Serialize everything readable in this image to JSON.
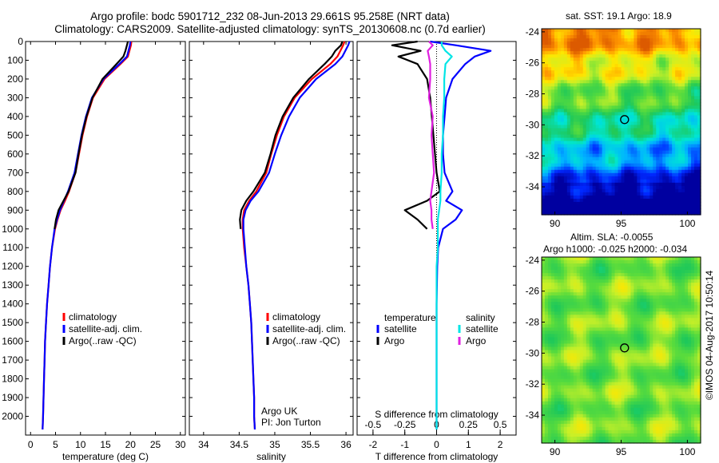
{
  "title_line1": "Argo profile: bodc 5901712_232 08-Jun-2013 29.661S 95.258E (NRT data)",
  "title_line2": "Climatology: CARS2009. Satellite-adjusted climatology: synTS_20130608.nc (0.7d earlier)",
  "sst_title": "sat. SST: 19.1 Argo: 18.9",
  "sla_title1": "Altim. SLA: -0.0055",
  "sla_title2": "Argo h1000: -0.025 h2000: -0.034",
  "credit": "©IMOS 04-Aug-2017 10:50:14",
  "argo_note1": "Argo UK",
  "argo_note2": "PI: Jon Turton",
  "colors": {
    "climatology": "#ff0000",
    "satellite": "#0000ff",
    "argo": "#000000",
    "sal_satellite": "#00e5e5",
    "sal_argo": "#e020e0"
  },
  "legend_profiles": [
    "climatology",
    "satellite-adj. clim.",
    "Argo(..raw -QC)"
  ],
  "legend_diff": {
    "temperature_header": "temperature",
    "salinity_header": "salinity",
    "items": [
      "satellite",
      "Argo",
      "satellite",
      "Argo"
    ]
  },
  "chart_data": [
    {
      "type": "line",
      "xlabel": "temperature (deg C)",
      "ylim": [
        2100,
        0
      ],
      "xlim": [
        -1,
        31
      ],
      "xticks": [
        "0",
        "5",
        "10",
        "15",
        "20",
        "25",
        "30"
      ],
      "yticks": [
        "0",
        "100",
        "200",
        "300",
        "400",
        "500",
        "600",
        "700",
        "800",
        "900",
        "1000",
        "1100",
        "1200",
        "1300",
        "1400",
        "1500",
        "1600",
        "1700",
        "1800",
        "1900",
        "2000"
      ],
      "y": [
        0,
        20,
        50,
        80,
        120,
        200,
        300,
        400,
        500,
        600,
        700,
        800,
        850,
        900,
        950,
        1000,
        1100,
        1200,
        1300,
        1400,
        1500,
        1600,
        1700,
        1800,
        1900,
        2000,
        2070
      ],
      "series": [
        {
          "name": "climatology",
          "values": [
            20.2,
            20.1,
            19.8,
            19.5,
            18.0,
            14.8,
            12.5,
            11.3,
            10.4,
            9.7,
            9.0,
            7.7,
            6.9,
            6.0,
            5.4,
            4.9,
            4.3,
            3.9,
            3.6,
            3.3,
            3.1,
            2.9,
            2.8,
            2.7,
            2.6,
            2.5,
            2.4
          ]
        },
        {
          "name": "satellite-adj. clim.",
          "values": [
            20.0,
            19.9,
            19.6,
            19.3,
            17.8,
            14.6,
            12.3,
            11.1,
            10.2,
            9.5,
            8.8,
            7.5,
            6.7,
            5.9,
            5.3,
            4.8,
            4.3,
            3.9,
            3.6,
            3.3,
            3.1,
            2.9,
            2.8,
            2.7,
            2.6,
            2.5,
            2.4
          ]
        },
        {
          "name": "Argo(..raw -QC)",
          "values": [
            19.5,
            19.3,
            19.0,
            18.6,
            17.2,
            14.4,
            12.4,
            11.2,
            10.3,
            9.6,
            9.0,
            7.6,
            6.6,
            5.6,
            5.1,
            4.8
          ]
        }
      ]
    },
    {
      "type": "line",
      "xlabel": "salinity",
      "ylim": [
        2100,
        0
      ],
      "xlim": [
        33.8,
        36.1
      ],
      "xticks": [
        "34",
        "34.5",
        "35",
        "35.5",
        "36"
      ],
      "y": [
        0,
        20,
        50,
        80,
        120,
        200,
        300,
        400,
        500,
        600,
        700,
        800,
        850,
        900,
        950,
        1000,
        1100,
        1200,
        1300,
        1400,
        1500,
        1600,
        1700,
        1800,
        1900,
        2000,
        2070
      ],
      "series": [
        {
          "name": "climatology",
          "values": [
            35.98,
            35.96,
            35.92,
            35.88,
            35.78,
            35.52,
            35.28,
            35.13,
            35.03,
            34.95,
            34.88,
            34.74,
            34.64,
            34.57,
            34.55,
            34.55,
            34.57,
            34.6,
            34.63,
            34.65,
            34.67,
            34.68,
            34.69,
            34.7,
            34.71,
            34.71,
            34.72
          ]
        },
        {
          "name": "satellite-adj. clim.",
          "values": [
            36.05,
            36.03,
            35.99,
            35.95,
            35.85,
            35.58,
            35.35,
            35.2,
            35.09,
            35.0,
            34.92,
            34.77,
            34.66,
            34.59,
            34.56,
            34.56,
            34.58,
            34.6,
            34.63,
            34.65,
            34.67,
            34.68,
            34.69,
            34.7,
            34.71,
            34.71,
            34.72
          ]
        },
        {
          "name": "Argo(..raw -QC)",
          "values": [
            35.95,
            35.93,
            35.85,
            35.8,
            35.7,
            35.48,
            35.26,
            35.11,
            35.01,
            34.94,
            34.86,
            34.7,
            34.6,
            34.53,
            34.51,
            34.52
          ]
        }
      ]
    },
    {
      "type": "line",
      "xlabel": "T difference from climatology",
      "x2label": "S difference from climatology",
      "ylim": [
        2100,
        0
      ],
      "xlim": [
        -2.5,
        2.5
      ],
      "xticks": [
        "-2",
        "-1",
        "0",
        "1",
        "2"
      ],
      "x2ticks": [
        "-0.5",
        "-0.25",
        "0",
        "0.25",
        "0.5"
      ],
      "y": [
        0,
        20,
        50,
        80,
        120,
        200,
        300,
        400,
        500,
        600,
        700,
        800,
        850,
        900,
        950,
        1000,
        1100,
        1200,
        1300,
        1400,
        1500,
        1600,
        1700,
        1800,
        1900,
        2000,
        2070
      ],
      "series": [
        {
          "name": "temperature satellite",
          "values": [
            -0.2,
            0.6,
            1.7,
            1.2,
            0.9,
            0.5,
            0.3,
            0.25,
            0.2,
            0.2,
            0.25,
            0.5,
            0.3,
            0.8,
            0.6,
            0.2,
            0.05,
            0.02,
            0.01,
            0.0,
            0.0,
            0.0,
            0.0,
            0.0,
            0.0,
            0.0,
            0.0
          ]
        },
        {
          "name": "temperature Argo",
          "values": [
            -0.6,
            -1.4,
            -0.5,
            -1.2,
            -0.6,
            -0.3,
            -0.2,
            -0.15,
            -0.1,
            -0.05,
            0.0,
            0.1,
            -0.3,
            -1.0,
            -0.6,
            -0.3
          ]
        },
        {
          "name": "salinity satellite",
          "values": [
            0.04,
            0.04,
            0.07,
            0.12,
            0.07,
            0.06,
            0.06,
            0.05,
            0.05,
            0.04,
            0.04,
            0.03,
            0.03,
            0.02,
            0.01,
            0.01,
            0.01,
            0.0,
            0.0,
            0.0,
            0.0,
            0.0,
            0.0,
            0.0,
            0.0,
            0.0,
            0.0
          ]
        },
        {
          "name": "salinity Argo",
          "values": [
            -0.06,
            -0.03,
            -0.07,
            -0.06,
            -0.05,
            -0.05,
            -0.06,
            -0.03,
            -0.04,
            -0.03,
            -0.02,
            -0.04,
            -0.05,
            -0.04,
            -0.04,
            -0.03
          ]
        }
      ]
    },
    {
      "type": "heatmap",
      "title": "sat. SST: 19.1 Argo: 18.9",
      "xticks": [
        "90",
        "95",
        "100"
      ],
      "yticks": [
        "-24",
        "-26",
        "-28",
        "-30",
        "-32",
        "-34"
      ],
      "xlim": [
        89,
        101
      ],
      "ylim": [
        -35.8,
        -23.8
      ],
      "marker": {
        "lon": 95.258,
        "lat": -29.661
      }
    },
    {
      "type": "heatmap",
      "title": "Altim. SLA: -0.0055",
      "xticks": [
        "90",
        "95",
        "100"
      ],
      "yticks": [
        "-24",
        "-26",
        "-28",
        "-30",
        "-32",
        "-34"
      ],
      "xlim": [
        89,
        101
      ],
      "ylim": [
        -35.8,
        -23.8
      ],
      "marker": {
        "lon": 95.258,
        "lat": -29.661
      }
    }
  ]
}
